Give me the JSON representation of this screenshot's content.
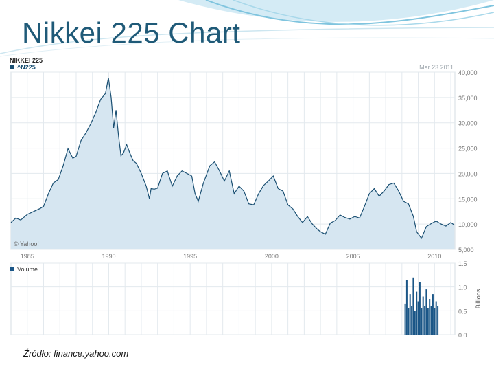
{
  "slide": {
    "title": "Nikkei 225 Chart",
    "source": "Źródło: finance.yahoo.com"
  },
  "colors": {
    "title": "#1f5a78",
    "area_fill": "#d6e6f1",
    "line": "#1a4f72",
    "volume": "#1a5687",
    "grid": "#e3e9ee",
    "label": "#777777"
  },
  "chart_data": [
    {
      "type": "area",
      "title": "NIKKEI 225",
      "legend": [
        "^N225"
      ],
      "date_label": "Mar 23 2011",
      "watermark": "© Yahoo!",
      "xlabel": "",
      "ylabel": "",
      "x_ticks": [
        "1985",
        "1990",
        "1995",
        "2000",
        "2005",
        "2010"
      ],
      "y_ticks": [
        "40,000",
        "35,000",
        "30,000",
        "25,000",
        "20,000",
        "15,000",
        "10,000",
        "5,000"
      ],
      "xlim": [
        1984.0,
        2011.25
      ],
      "ylim": [
        5000,
        40000
      ],
      "grid": true,
      "x": [
        1984.0,
        1984.3,
        1984.6,
        1985.0,
        1985.4,
        1985.8,
        1986.0,
        1986.3,
        1986.6,
        1986.9,
        1987.2,
        1987.5,
        1987.8,
        1988.0,
        1988.3,
        1988.6,
        1988.9,
        1989.2,
        1989.5,
        1989.8,
        1989.98,
        1990.15,
        1990.3,
        1990.45,
        1990.6,
        1990.75,
        1990.9,
        1991.1,
        1991.3,
        1991.5,
        1991.7,
        1992.0,
        1992.3,
        1992.5,
        1992.6,
        1992.8,
        1993.0,
        1993.3,
        1993.6,
        1993.9,
        1994.2,
        1994.5,
        1994.8,
        1995.1,
        1995.3,
        1995.5,
        1995.8,
        1996.2,
        1996.5,
        1996.8,
        1997.1,
        1997.4,
        1997.7,
        1998.0,
        1998.3,
        1998.6,
        1998.9,
        1999.2,
        1999.5,
        1999.8,
        2000.1,
        2000.4,
        2000.7,
        2001.0,
        2001.3,
        2001.6,
        2001.9,
        2002.2,
        2002.5,
        2002.8,
        2003.0,
        2003.3,
        2003.6,
        2003.9,
        2004.2,
        2004.5,
        2004.8,
        2005.1,
        2005.4,
        2005.7,
        2006.0,
        2006.3,
        2006.6,
        2006.9,
        2007.2,
        2007.5,
        2007.8,
        2008.1,
        2008.4,
        2008.7,
        2008.9,
        2009.2,
        2009.5,
        2009.8,
        2010.1,
        2010.4,
        2010.7,
        2011.0,
        2011.22
      ],
      "y": [
        10300,
        11200,
        10800,
        11900,
        12500,
        13100,
        13500,
        16000,
        18100,
        18800,
        21500,
        24900,
        23000,
        23400,
        26500,
        28000,
        29800,
        32000,
        34600,
        35800,
        38900,
        35000,
        29000,
        32500,
        27500,
        23500,
        24000,
        25700,
        24000,
        22500,
        22000,
        20000,
        17500,
        15000,
        17000,
        16900,
        17100,
        20000,
        20500,
        17500,
        19500,
        20500,
        20000,
        19500,
        16000,
        14500,
        18000,
        21500,
        22300,
        20500,
        18500,
        20500,
        16000,
        17500,
        16500,
        14000,
        13800,
        16000,
        17600,
        18500,
        19500,
        17000,
        16500,
        13800,
        13000,
        11500,
        10300,
        11500,
        10000,
        9000,
        8500,
        8000,
        10200,
        10700,
        11800,
        11300,
        11000,
        11500,
        11200,
        13500,
        16000,
        17000,
        15500,
        16500,
        17800,
        18100,
        16500,
        14500,
        14000,
        11500,
        8500,
        7200,
        9500,
        10100,
        10600,
        10000,
        9600,
        10300,
        9800
      ]
    },
    {
      "type": "bar",
      "title": "",
      "legend": [
        "Volume"
      ],
      "ylabel": "Billions",
      "y_ticks": [
        "1.5",
        "1.0",
        "0.5",
        "0.0"
      ],
      "ylim": [
        0,
        1.5
      ],
      "x": [
        2008.2,
        2008.3,
        2008.4,
        2008.5,
        2008.6,
        2008.7,
        2008.8,
        2008.9,
        2009.0,
        2009.1,
        2009.2,
        2009.3,
        2009.4,
        2009.5,
        2009.6,
        2009.7,
        2009.8,
        2009.9,
        2010.0,
        2010.1,
        2010.2
      ],
      "values": [
        0.65,
        1.15,
        0.55,
        0.85,
        0.6,
        1.2,
        0.5,
        0.9,
        0.7,
        1.1,
        0.55,
        0.8,
        0.6,
        0.95,
        0.55,
        0.75,
        0.6,
        0.85,
        0.55,
        0.7,
        0.6
      ]
    }
  ]
}
